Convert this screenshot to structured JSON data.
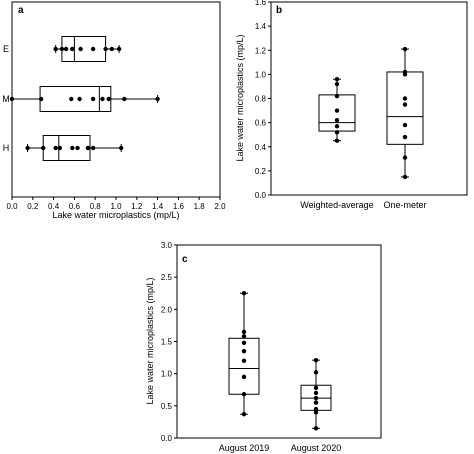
{
  "chart_data": [
    {
      "panel": "a",
      "type": "boxplot",
      "orientation": "horizontal",
      "xlabel": "Lake water microplastics (mp/L)",
      "ylabel": "",
      "xlim": [
        0,
        2.0
      ],
      "xticks": [
        "0.0",
        "0.2",
        "0.4",
        "0.6",
        "0.8",
        "1.0",
        "1.2",
        "1.4",
        "1.6",
        "1.8",
        "2.0"
      ],
      "categories": [
        "E",
        "M",
        "H"
      ],
      "boxes": [
        {
          "category": "E",
          "min": 0.42,
          "q1": 0.48,
          "median": 0.6,
          "q3": 0.9,
          "max": 1.03,
          "points": [
            0.42,
            0.48,
            0.52,
            0.58,
            0.66,
            0.78,
            0.9,
            0.96,
            1.03
          ]
        },
        {
          "category": "M",
          "min": 0.0,
          "q1": 0.27,
          "median": 0.84,
          "q3": 0.95,
          "max": 1.4,
          "points": [
            0.0,
            0.28,
            0.57,
            0.65,
            0.78,
            0.87,
            0.93,
            1.08,
            1.4
          ]
        },
        {
          "category": "H",
          "min": 0.15,
          "q1": 0.3,
          "median": 0.45,
          "q3": 0.75,
          "max": 1.05,
          "points": [
            0.15,
            0.3,
            0.42,
            0.46,
            0.58,
            0.63,
            0.73,
            0.78,
            1.05
          ]
        }
      ]
    },
    {
      "panel": "b",
      "type": "boxplot",
      "orientation": "vertical",
      "xlabel": "",
      "ylabel": "Lake water microplastics (mp/L)",
      "ylim": [
        0,
        1.6
      ],
      "yticks": [
        "0.0",
        "0.2",
        "0.4",
        "0.6",
        "0.8",
        "1.0",
        "1.2",
        "1.4",
        "1.6"
      ],
      "categories": [
        "Weighted-average",
        "One-meter"
      ],
      "boxes": [
        {
          "category": "Weighted-average",
          "min": 0.45,
          "q1": 0.53,
          "median": 0.6,
          "q3": 0.83,
          "max": 0.96,
          "points": [
            0.45,
            0.52,
            0.57,
            0.62,
            0.7,
            0.82,
            0.92,
            0.96
          ]
        },
        {
          "category": "One-meter",
          "min": 0.15,
          "q1": 0.42,
          "median": 0.65,
          "q3": 1.02,
          "max": 1.21,
          "points": [
            0.15,
            0.31,
            0.48,
            0.58,
            0.75,
            0.8,
            1.0,
            1.02,
            1.21
          ]
        }
      ]
    },
    {
      "panel": "c",
      "type": "boxplot",
      "orientation": "vertical",
      "xlabel": "",
      "ylabel": "Lake water microplastics (mp/L)",
      "ylim": [
        0,
        3.0
      ],
      "yticks": [
        "0.0",
        "0.5",
        "1.0",
        "1.5",
        "2.0",
        "2.5",
        "3.0"
      ],
      "categories": [
        "August 2019",
        "August 2020"
      ],
      "boxes": [
        {
          "category": "August 2019",
          "min": 0.37,
          "q1": 0.68,
          "median": 1.08,
          "q3": 1.55,
          "max": 2.25,
          "points": [
            0.37,
            0.68,
            0.95,
            1.2,
            1.35,
            1.48,
            1.58,
            1.65,
            2.25
          ]
        },
        {
          "category": "August 2020",
          "min": 0.15,
          "q1": 0.43,
          "median": 0.62,
          "q3": 0.82,
          "max": 1.21,
          "points": [
            0.15,
            0.4,
            0.45,
            0.55,
            0.62,
            0.7,
            0.78,
            1.02,
            1.21
          ]
        }
      ]
    }
  ]
}
